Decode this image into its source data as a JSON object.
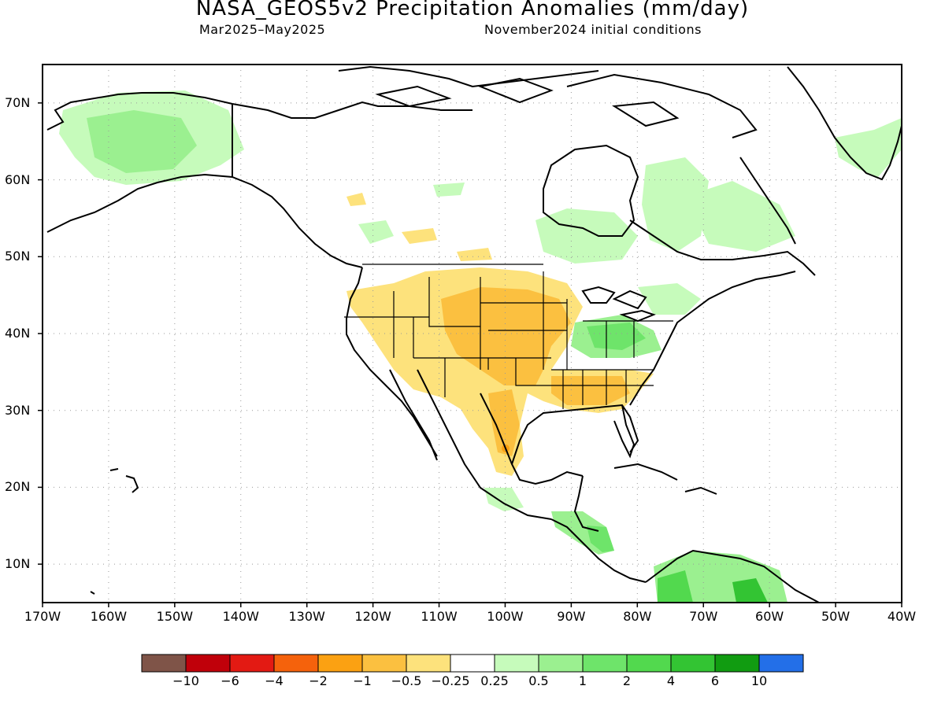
{
  "header": {
    "title": "NASA_GEOS5v2 Precipitation Anomalies (mm/day)",
    "period": "Mar2025–May2025",
    "init": "November2024 initial conditions"
  },
  "axes": {
    "lat_labels": [
      "70N",
      "60N",
      "50N",
      "40N",
      "30N",
      "20N",
      "10N"
    ],
    "lon_labels": [
      "170W",
      "160W",
      "150W",
      "140W",
      "130W",
      "120W",
      "110W",
      "100W",
      "90W",
      "80W",
      "70W",
      "60W",
      "50W",
      "40W"
    ]
  },
  "colorbar": {
    "colors": [
      "#7f5448",
      "#c0000a",
      "#e31a13",
      "#f5620c",
      "#fba112",
      "#fbc040",
      "#fde27c",
      "#ffffff",
      "#c6fbbb",
      "#9bf090",
      "#6ee46a",
      "#52d94e",
      "#33c433",
      "#119c11",
      "#236fe8"
    ],
    "labels": [
      "−10",
      "−6",
      "−4",
      "−2",
      "−1",
      "−0.5",
      "−0.25",
      "0.25",
      "0.5",
      "1",
      "2",
      "4",
      "6",
      "10"
    ]
  },
  "map_info": {
    "region": "North America",
    "lon_range": [
      -170,
      -40
    ],
    "lat_range": [
      5,
      75
    ],
    "grid": "dotted"
  }
}
